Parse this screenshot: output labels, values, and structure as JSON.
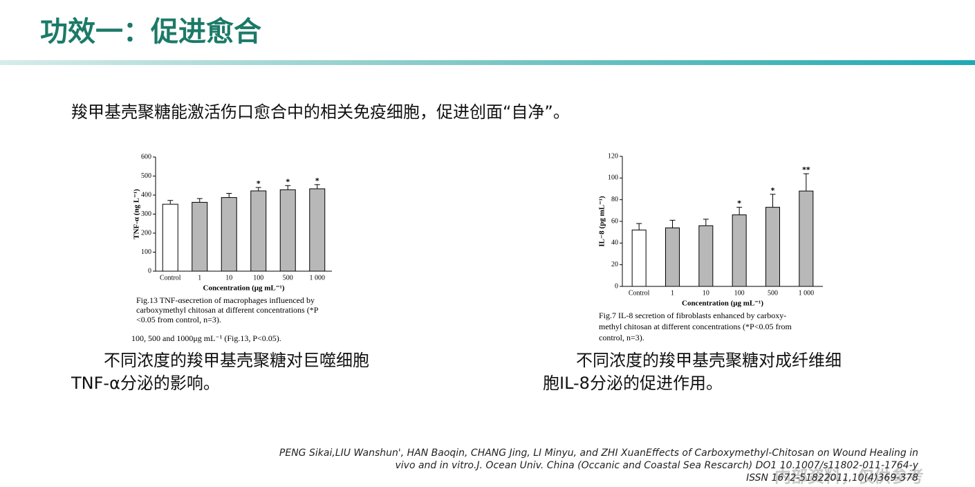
{
  "slide_title": "功效一：促进愈合",
  "intro": "羧甲基壳聚糖能激活伤口愈合中的相关免疫细胞，促进创面“自净”。",
  "chart_data": [
    {
      "type": "bar",
      "ylabel": "TNF-α (ng L⁻¹)",
      "xlabel": "Concentration (μg mL⁻¹)",
      "categories": [
        "Control",
        "1",
        "10",
        "100",
        "500",
        "1 000"
      ],
      "values": [
        352,
        362,
        387,
        422,
        428,
        433
      ],
      "errors": [
        20,
        20,
        22,
        18,
        22,
        22
      ],
      "annotations": [
        null,
        null,
        null,
        "*",
        "*",
        "*"
      ],
      "colors": [
        "#ffffff",
        "#b8b8b8",
        "#b8b8b8",
        "#b8b8b8",
        "#b8b8b8",
        "#b8b8b8"
      ],
      "ylim": [
        0,
        600
      ],
      "yticks": [
        0,
        100,
        200,
        300,
        400,
        500,
        600
      ],
      "caption": [
        "Fig.13  TNF-αsecretion  of  macrophages  influenced  by",
        "carboxymethyl  chitosan  at  different  concentrations  (*P",
        "<0.05 from control, n=3)."
      ],
      "note": "100, 500 and 1000μg mL⁻¹ (Fig.13, P<0.05).",
      "description": [
        "不同浓度的羧甲基壳聚糖对巨噬细胞",
        "TNF-α分泌的影响。"
      ]
    },
    {
      "type": "bar",
      "ylabel": "IL−8 (pg mL⁻¹)",
      "xlabel": "Concentration (μg mL⁻¹)",
      "categories": [
        "Control",
        "1",
        "10",
        "100",
        "500",
        "1 000"
      ],
      "values": [
        52,
        54,
        56,
        66,
        73,
        88
      ],
      "errors": [
        6,
        7,
        6,
        7,
        12,
        16
      ],
      "annotations": [
        null,
        null,
        null,
        "*",
        "*",
        "**"
      ],
      "colors": [
        "#ffffff",
        "#b8b8b8",
        "#b8b8b8",
        "#b8b8b8",
        "#b8b8b8",
        "#b8b8b8"
      ],
      "ylim": [
        0,
        120
      ],
      "yticks": [
        0,
        20,
        40,
        60,
        80,
        100,
        120
      ],
      "caption": [
        "Fig.7  IL-8  secretion  of  fibroblasts  enhanced  by  carboxy-",
        "methyl  chitosan  at  different  concentrations  (*P<0.05  from",
        "control, n=3)."
      ],
      "description": [
        "不同浓度的羧甲基壳聚糖对成纤维细",
        "胞IL-8分泌的促进作用。"
      ]
    }
  ],
  "citation": [
    "PENG Sikai,LIU Wanshun', HAN Baoqin, CHANG Jing, LI Minyu, and ZHI XuanEffects of Carboxymethyl-Chitosan on Wound Healing in",
    "vivo and in vitro.J. Ocean Univ. China (Occanic and Coastal Sea Rescarch) DO1 10.1007/s11802-011-1764-y",
    "ISSN 1672-51822011,10(4)369-378"
  ],
  "watermark": "内部资料，仅供参考"
}
